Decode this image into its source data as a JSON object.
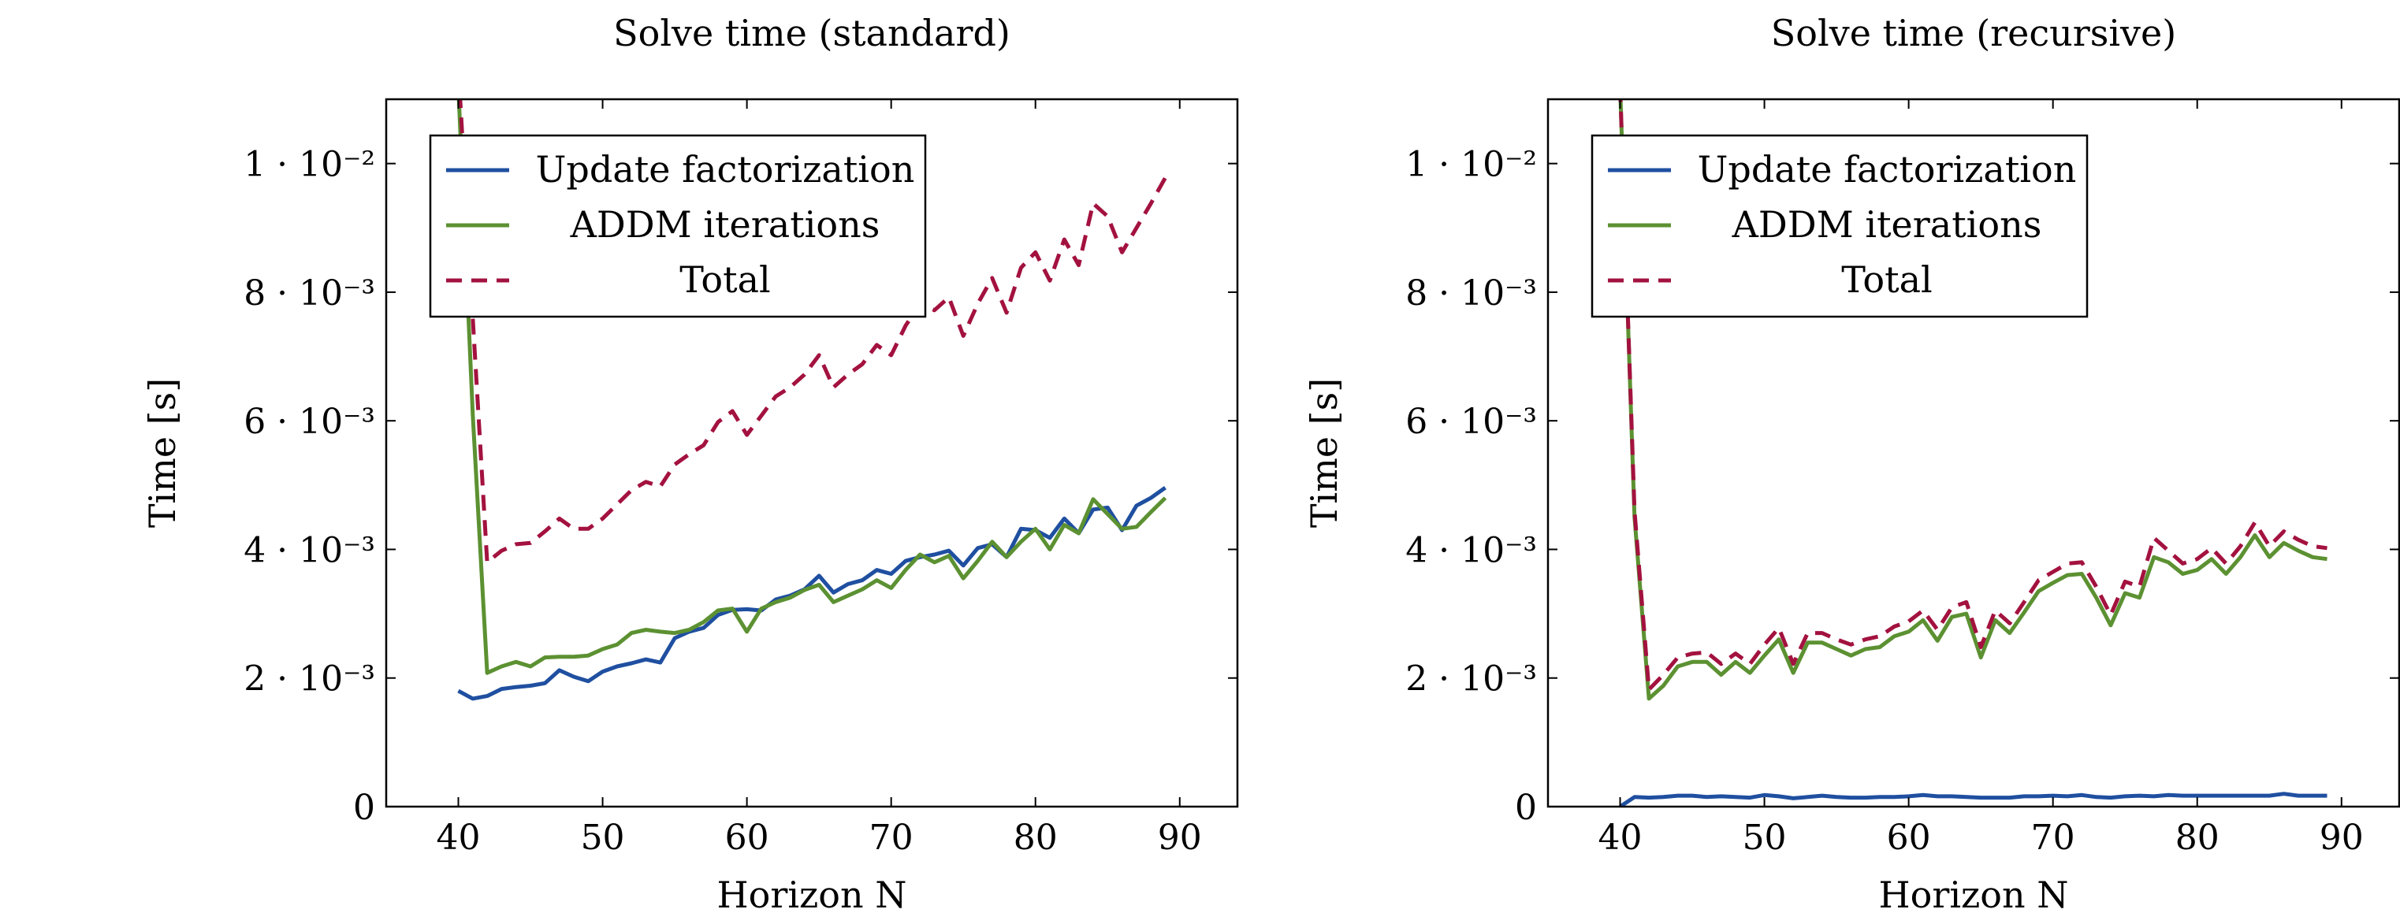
{
  "colors": {
    "update": "#1f4fa0",
    "addm": "#5c9132",
    "total": "#a3123f"
  },
  "chart_data": [
    {
      "type": "line",
      "title": "Solve time (standard)",
      "xlabel": "Horizon N",
      "ylabel": "Time [s]",
      "xlim": [
        35,
        94
      ],
      "ylim": [
        0,
        0.011
      ],
      "xticks": [
        40,
        50,
        60,
        70,
        80,
        90
      ],
      "xtick_labels": [
        "40",
        "50",
        "60",
        "70",
        "80",
        "90"
      ],
      "yticks": [
        0,
        0.002,
        0.004,
        0.006,
        0.008,
        0.01
      ],
      "ytick_labels": [
        "0",
        "2 · 10⁻³",
        "4 · 10⁻³",
        "6 · 10⁻³",
        "8 · 10⁻³",
        "1 · 10⁻²"
      ],
      "legend_position": "top-left",
      "x": [
        40,
        41,
        42,
        43,
        44,
        45,
        46,
        47,
        48,
        49,
        50,
        51,
        52,
        53,
        54,
        55,
        56,
        57,
        58,
        59,
        60,
        61,
        62,
        63,
        64,
        65,
        66,
        67,
        68,
        69,
        70,
        71,
        72,
        73,
        74,
        75,
        76,
        77,
        78,
        79,
        80,
        81,
        82,
        83,
        84,
        85,
        86,
        87,
        88,
        89
      ],
      "series": [
        {
          "name": "Update factorization",
          "color_key": "update",
          "dash": "solid",
          "values": [
            0.0018,
            0.00168,
            0.00172,
            0.00183,
            0.00186,
            0.00188,
            0.00192,
            0.00212,
            0.00202,
            0.00195,
            0.0021,
            0.00218,
            0.00223,
            0.00229,
            0.00224,
            0.00262,
            0.00272,
            0.00278,
            0.00298,
            0.00306,
            0.00307,
            0.00305,
            0.00322,
            0.00328,
            0.00338,
            0.00359,
            0.00333,
            0.00346,
            0.00352,
            0.00368,
            0.00362,
            0.00382,
            0.00388,
            0.00392,
            0.00398,
            0.00375,
            0.00402,
            0.00408,
            0.00388,
            0.00432,
            0.0043,
            0.00418,
            0.00448,
            0.00425,
            0.00462,
            0.00465,
            0.0043,
            0.00468,
            0.0048,
            0.00496
          ]
        },
        {
          "name": "ADDM iterations",
          "color_key": "addm",
          "dash": "solid",
          "values": [
            0.0112,
            0.0061,
            0.00208,
            0.00218,
            0.00225,
            0.00218,
            0.00232,
            0.00233,
            0.00233,
            0.00235,
            0.00245,
            0.00252,
            0.0027,
            0.00275,
            0.00272,
            0.0027,
            0.00275,
            0.00287,
            0.00305,
            0.00308,
            0.00272,
            0.00308,
            0.00318,
            0.00325,
            0.00337,
            0.00345,
            0.00318,
            0.00328,
            0.00338,
            0.00352,
            0.0034,
            0.00368,
            0.00392,
            0.0038,
            0.0039,
            0.00355,
            0.00382,
            0.00412,
            0.00388,
            0.00412,
            0.00432,
            0.004,
            0.00438,
            0.00425,
            0.00478,
            0.00455,
            0.00432,
            0.00435,
            0.00458,
            0.0048
          ]
        },
        {
          "name": "Total",
          "color_key": "total",
          "dash": "dashed",
          "values": [
            0.0115,
            0.0076,
            0.0038,
            0.00398,
            0.00408,
            0.0041,
            0.00428,
            0.00448,
            0.00432,
            0.00432,
            0.00448,
            0.0047,
            0.00492,
            0.00505,
            0.00498,
            0.00532,
            0.00548,
            0.00562,
            0.00598,
            0.00615,
            0.00578,
            0.00608,
            0.00638,
            0.00652,
            0.00672,
            0.00702,
            0.00652,
            0.00672,
            0.00688,
            0.00718,
            0.00702,
            0.00748,
            0.00782,
            0.00772,
            0.00792,
            0.00732,
            0.00782,
            0.00822,
            0.00768,
            0.00838,
            0.00862,
            0.00818,
            0.00882,
            0.00842,
            0.00938,
            0.00918,
            0.00862,
            0.009,
            0.00938,
            0.00978
          ]
        }
      ]
    },
    {
      "type": "line",
      "title": "Solve time (recursive)",
      "xlabel": "Horizon N",
      "ylabel": "Time [s]",
      "xlim": [
        35,
        94
      ],
      "ylim": [
        0,
        0.011
      ],
      "xticks": [
        40,
        50,
        60,
        70,
        80,
        90
      ],
      "xtick_labels": [
        "40",
        "50",
        "60",
        "70",
        "80",
        "90"
      ],
      "yticks": [
        0,
        0.002,
        0.004,
        0.006,
        0.008,
        0.01
      ],
      "ytick_labels": [
        "0",
        "2 · 10⁻³",
        "4 · 10⁻³",
        "6 · 10⁻³",
        "8 · 10⁻³",
        "1 · 10⁻²"
      ],
      "legend_position": "top-left",
      "x": [
        40,
        41,
        42,
        43,
        44,
        45,
        46,
        47,
        48,
        49,
        50,
        51,
        52,
        53,
        54,
        55,
        56,
        57,
        58,
        59,
        60,
        61,
        62,
        63,
        64,
        65,
        66,
        67,
        68,
        69,
        70,
        71,
        72,
        73,
        74,
        75,
        76,
        77,
        78,
        79,
        80,
        81,
        82,
        83,
        84,
        85,
        86,
        87,
        88,
        89
      ],
      "series": [
        {
          "name": "Update factorization",
          "color_key": "update",
          "dash": "solid",
          "values": [
            0.0,
            0.00015,
            0.00014,
            0.00015,
            0.00017,
            0.00017,
            0.00015,
            0.00016,
            0.00015,
            0.00014,
            0.00018,
            0.00016,
            0.00013,
            0.00015,
            0.00017,
            0.00015,
            0.00014,
            0.00014,
            0.00015,
            0.00015,
            0.00016,
            0.00018,
            0.00016,
            0.00016,
            0.00015,
            0.00014,
            0.00014,
            0.00014,
            0.00016,
            0.00016,
            0.00017,
            0.00016,
            0.00018,
            0.00015,
            0.00014,
            0.00016,
            0.00017,
            0.00016,
            0.00018,
            0.00017,
            0.00017,
            0.00017,
            0.00017,
            0.00017,
            0.00017,
            0.00017,
            0.0002,
            0.00017,
            0.00017,
            0.00017
          ]
        },
        {
          "name": "ADDM iterations",
          "color_key": "addm",
          "dash": "solid",
          "values": [
            0.0112,
            0.0045,
            0.00168,
            0.00188,
            0.00218,
            0.00225,
            0.00225,
            0.00205,
            0.00225,
            0.00208,
            0.00235,
            0.0026,
            0.00208,
            0.00255,
            0.00255,
            0.00245,
            0.00235,
            0.00245,
            0.00248,
            0.00265,
            0.00272,
            0.0029,
            0.00258,
            0.00295,
            0.003,
            0.00232,
            0.0029,
            0.0027,
            0.00302,
            0.00335,
            0.00348,
            0.0036,
            0.00362,
            0.00325,
            0.00282,
            0.00332,
            0.00325,
            0.00388,
            0.0038,
            0.00362,
            0.00368,
            0.00385,
            0.00362,
            0.00388,
            0.00422,
            0.00388,
            0.0041,
            0.00398,
            0.00388,
            0.00385
          ]
        },
        {
          "name": "Total",
          "color_key": "total",
          "dash": "dashed",
          "values": [
            0.0112,
            0.0046,
            0.00182,
            0.00205,
            0.00232,
            0.00238,
            0.0024,
            0.00222,
            0.00238,
            0.00222,
            0.00252,
            0.00278,
            0.00222,
            0.0027,
            0.0027,
            0.0026,
            0.00252,
            0.0026,
            0.00265,
            0.0028,
            0.00288,
            0.00305,
            0.00275,
            0.0031,
            0.00318,
            0.00248,
            0.00305,
            0.00285,
            0.00318,
            0.00352,
            0.00365,
            0.00378,
            0.0038,
            0.00342,
            0.00298,
            0.0035,
            0.00342,
            0.00418,
            0.00398,
            0.00378,
            0.00385,
            0.00402,
            0.00378,
            0.00405,
            0.00442,
            0.00405,
            0.00428,
            0.00415,
            0.00405,
            0.00402
          ]
        }
      ]
    }
  ]
}
